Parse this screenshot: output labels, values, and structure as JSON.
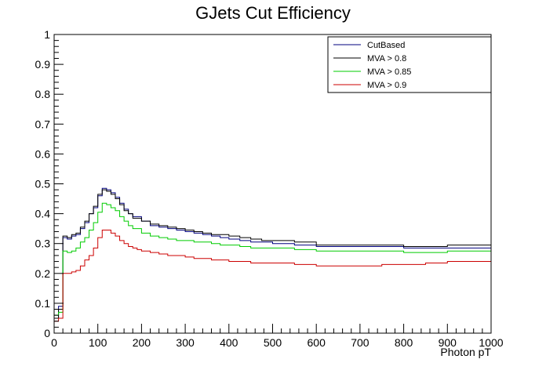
{
  "chart_data": {
    "type": "line",
    "title": "GJets Cut Efficiency",
    "xlabel": "Photon pT",
    "ylabel": "",
    "xlim": [
      0,
      1000
    ],
    "ylim": [
      0,
      1
    ],
    "grid": false,
    "legend_position": "top-right",
    "x_ticks": [
      "0",
      "100",
      "200",
      "300",
      "400",
      "500",
      "600",
      "700",
      "800",
      "900",
      "1000"
    ],
    "y_ticks": [
      "0",
      "0.1",
      "0.2",
      "0.3",
      "0.4",
      "0.5",
      "0.6",
      "0.7",
      "0.8",
      "0.9",
      "1"
    ],
    "bin_edges": [
      0,
      10,
      20,
      30,
      40,
      50,
      60,
      70,
      80,
      90,
      100,
      110,
      120,
      130,
      140,
      150,
      160,
      170,
      180,
      190,
      200,
      220,
      240,
      260,
      280,
      300,
      320,
      340,
      360,
      380,
      400,
      425,
      450,
      475,
      500,
      550,
      600,
      650,
      700,
      750,
      800,
      850,
      900,
      1000
    ],
    "series": [
      {
        "name": "CutBased",
        "color": "#00007f",
        "values": [
          0.05,
          0.09,
          0.32,
          0.315,
          0.325,
          0.33,
          0.35,
          0.37,
          0.4,
          0.42,
          0.46,
          0.485,
          0.48,
          0.47,
          0.455,
          0.435,
          0.415,
          0.4,
          0.39,
          0.39,
          0.375,
          0.36,
          0.355,
          0.35,
          0.345,
          0.34,
          0.335,
          0.33,
          0.325,
          0.32,
          0.315,
          0.31,
          0.305,
          0.305,
          0.3,
          0.295,
          0.29,
          0.29,
          0.29,
          0.29,
          0.285,
          0.285,
          0.285
        ]
      },
      {
        "name": "MVA > 0.8",
        "color": "#000000",
        "values": [
          0.05,
          0.08,
          0.325,
          0.32,
          0.33,
          0.335,
          0.355,
          0.375,
          0.4,
          0.425,
          0.465,
          0.48,
          0.475,
          0.465,
          0.45,
          0.43,
          0.41,
          0.4,
          0.385,
          0.385,
          0.375,
          0.365,
          0.36,
          0.355,
          0.35,
          0.345,
          0.34,
          0.335,
          0.33,
          0.33,
          0.325,
          0.32,
          0.315,
          0.31,
          0.31,
          0.305,
          0.295,
          0.295,
          0.295,
          0.295,
          0.29,
          0.29,
          0.295
        ]
      },
      {
        "name": "MVA > 0.85",
        "color": "#00cc00",
        "values": [
          0.06,
          0.07,
          0.275,
          0.27,
          0.275,
          0.285,
          0.305,
          0.32,
          0.345,
          0.37,
          0.405,
          0.435,
          0.43,
          0.42,
          0.41,
          0.39,
          0.375,
          0.36,
          0.35,
          0.35,
          0.335,
          0.325,
          0.32,
          0.315,
          0.31,
          0.31,
          0.305,
          0.305,
          0.3,
          0.295,
          0.295,
          0.29,
          0.285,
          0.285,
          0.285,
          0.28,
          0.275,
          0.275,
          0.275,
          0.275,
          0.27,
          0.27,
          0.275
        ]
      },
      {
        "name": "MVA > 0.9",
        "color": "#cc0000",
        "values": [
          0.04,
          0.05,
          0.2,
          0.2,
          0.205,
          0.21,
          0.225,
          0.245,
          0.26,
          0.285,
          0.32,
          0.345,
          0.345,
          0.335,
          0.325,
          0.31,
          0.3,
          0.29,
          0.285,
          0.28,
          0.275,
          0.27,
          0.265,
          0.26,
          0.26,
          0.255,
          0.25,
          0.25,
          0.245,
          0.245,
          0.24,
          0.24,
          0.235,
          0.235,
          0.235,
          0.23,
          0.225,
          0.225,
          0.225,
          0.23,
          0.23,
          0.235,
          0.24
        ]
      }
    ]
  }
}
